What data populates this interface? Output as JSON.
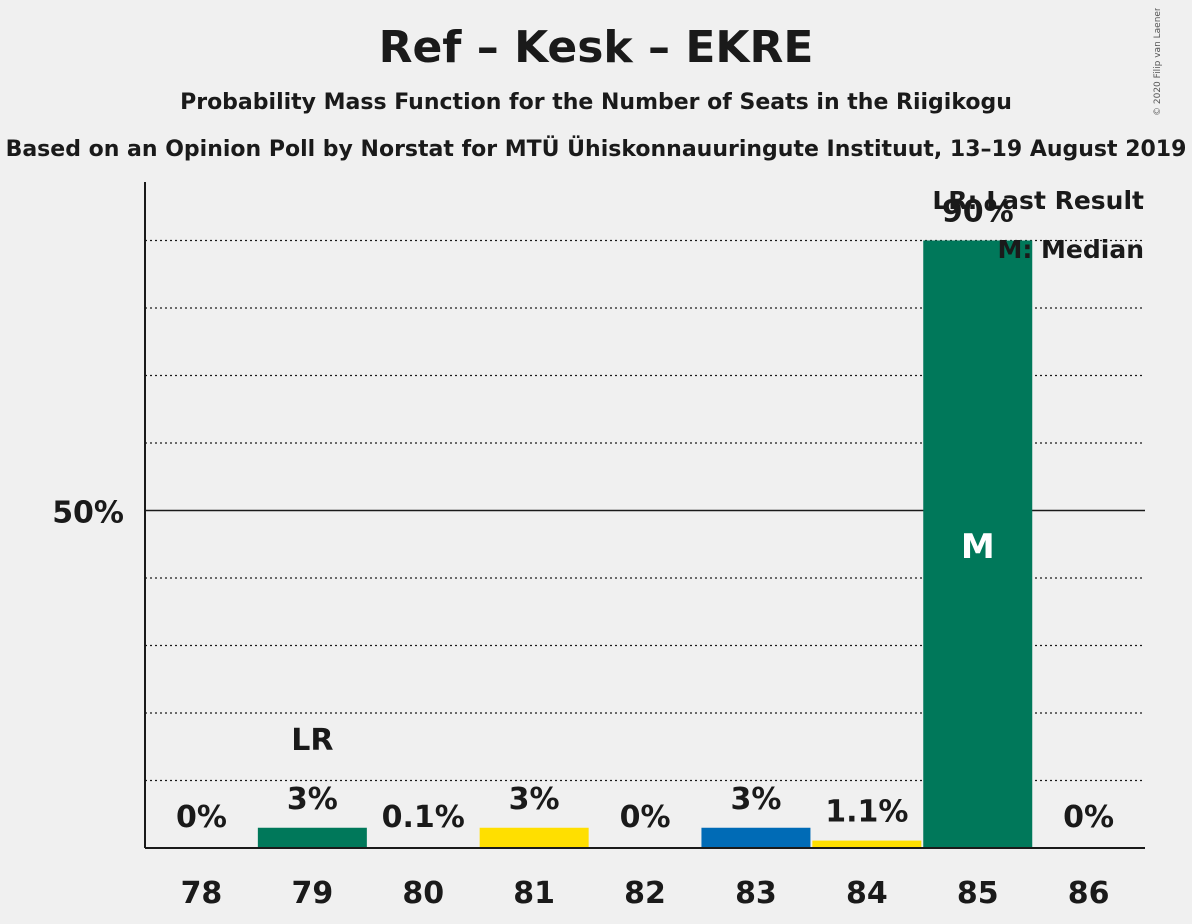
{
  "title": "Ref – Kesk – EKRE",
  "subtitle": "Probability Mass Function for the Number of Seats in the Riigikogu",
  "caption": "Based on an Opinion Poll by Norstat for MTÜ Ühiskonnauuringute Instituut, 13–19 August 2019",
  "copyright": "© 2020 Filip van Laenen",
  "legend": {
    "last_result": "LR: Last Result",
    "median": "M: Median"
  },
  "chart_data": {
    "type": "bar",
    "categories": [
      "78",
      "79",
      "80",
      "81",
      "82",
      "83",
      "84",
      "85",
      "86"
    ],
    "values": [
      0,
      3,
      0.1,
      3,
      0,
      3,
      1.1,
      90,
      0
    ],
    "labels": [
      "0%",
      "3%",
      "0.1%",
      "3%",
      "0%",
      "3%",
      "1.1%",
      "90%",
      "0%"
    ],
    "bar_colors": [
      "#00785a",
      "#00785a",
      "#00785a",
      "#ffdf00",
      "#ffdf00",
      "#006bb6",
      "#ffdf00",
      "#00785a",
      "#00785a"
    ],
    "last_result_category": "79",
    "last_result_marker": "LR",
    "median_category": "85",
    "median_marker": "M",
    "ylim": [
      0,
      100
    ],
    "major_tick": {
      "value": 50,
      "label": "50%"
    },
    "minor_gridlines": [
      10,
      20,
      30,
      40,
      60,
      70,
      80,
      90
    ],
    "xlabel": "",
    "ylabel": ""
  }
}
